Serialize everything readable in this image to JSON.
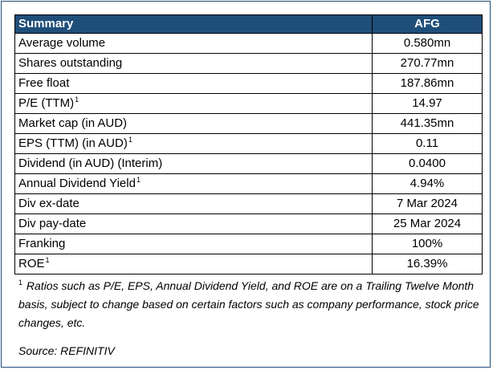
{
  "table": {
    "header": {
      "label": "Summary",
      "value": "AFG"
    },
    "rows": [
      {
        "label": "Average volume",
        "sup": "",
        "value": "0.580mn"
      },
      {
        "label": "Shares outstanding",
        "sup": "",
        "value": "270.77mn"
      },
      {
        "label": "Free float",
        "sup": "",
        "value": "187.86mn"
      },
      {
        "label": "P/E (TTM)",
        "sup": "1",
        "value": "14.97"
      },
      {
        "label": "Market cap (in AUD)",
        "sup": "",
        "value": "441.35mn"
      },
      {
        "label": "EPS (TTM) (in AUD)",
        "sup": "1",
        "value": "0.11"
      },
      {
        "label": "Dividend (in AUD) (Interim)",
        "sup": "",
        "value": "0.0400"
      },
      {
        "label": "Annual Dividend Yield",
        "sup": "1",
        "value": "4.94%"
      },
      {
        "label": "Div ex-date",
        "sup": "",
        "value": "7 Mar 2024"
      },
      {
        "label": "Div pay-date",
        "sup": "",
        "value": "25 Mar 2024"
      },
      {
        "label": "Franking",
        "sup": "",
        "value": "100%"
      },
      {
        "label": "ROE",
        "sup": "1",
        "value": "16.39%"
      }
    ]
  },
  "footnote": {
    "marker": "1",
    "text": "Ratios such as P/E, EPS, Annual Dividend Yield, and ROE are on a Trailing Twelve Month basis, subject to change based on certain factors such as company performance, stock price changes, etc."
  },
  "source": "Source: REFINITIV",
  "colors": {
    "header_bg": "#1f4e79",
    "header_text": "#ffffff",
    "border": "#1f4e79"
  }
}
